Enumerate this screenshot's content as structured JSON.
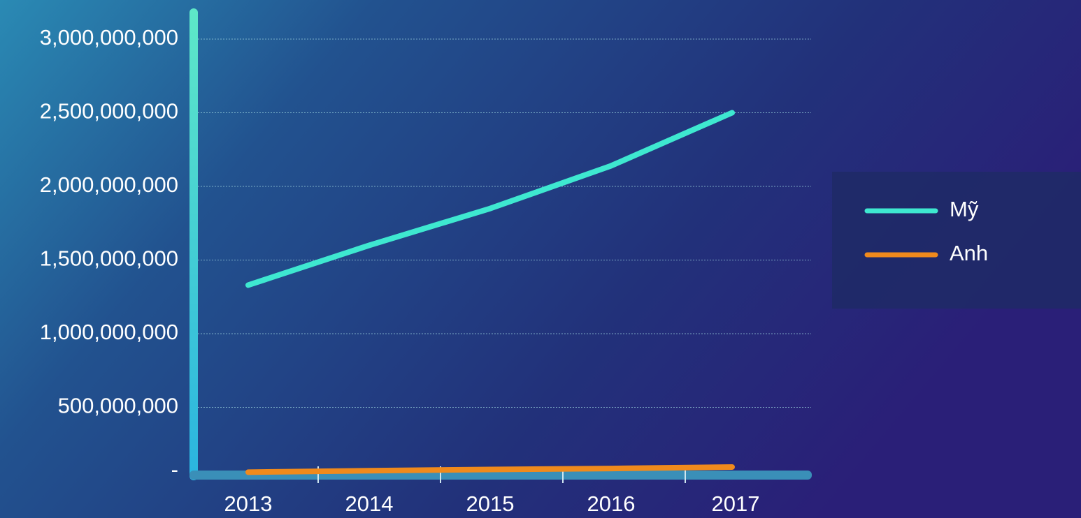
{
  "chart_data": {
    "type": "line",
    "categories": [
      "2013",
      "2014",
      "2015",
      "2016",
      "2017"
    ],
    "series": [
      {
        "name": "Mỹ",
        "color": "#3ee8d0",
        "values": [
          1330000000,
          1600000000,
          1850000000,
          2140000000,
          2500000000
        ]
      },
      {
        "name": "Anh",
        "color": "#f08a1c",
        "values": [
          60000000,
          70000000,
          78000000,
          85000000,
          95000000
        ]
      }
    ],
    "ylim": [
      0,
      3000000000
    ],
    "yticks": [
      {
        "value": 0,
        "label": "-"
      },
      {
        "value": 500000000,
        "label": "500,000,000"
      },
      {
        "value": 1000000000,
        "label": "1,000,000,000"
      },
      {
        "value": 1500000000,
        "label": "1,500,000,000"
      },
      {
        "value": 2000000000,
        "label": "2,000,000,000"
      },
      {
        "value": 2500000000,
        "label": "2,500,000,000"
      },
      {
        "value": 3000000000,
        "label": "3,000,000,000"
      }
    ],
    "grid": true,
    "legend": "right"
  }
}
